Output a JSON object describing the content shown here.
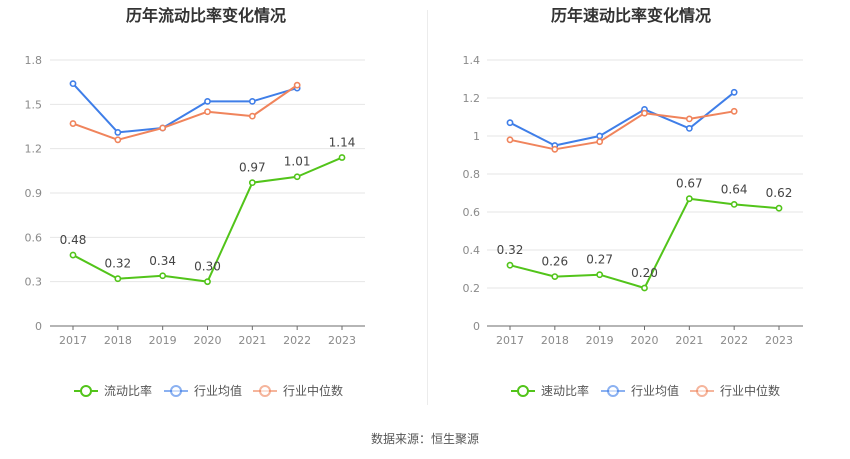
{
  "source_text": "数据来源：恒生聚源",
  "colors": {
    "main": "#52c41a",
    "industry_avg": "#3f7ee8",
    "industry_median": "#f0845c",
    "grid": "#e6e6e6",
    "axis": "#6b6b6b"
  },
  "chart_data": [
    {
      "type": "line",
      "title": "历年流动比率变化情况",
      "categories": [
        "2017",
        "2018",
        "2019",
        "2020",
        "2021",
        "2022",
        "2023"
      ],
      "ylim": [
        0,
        1.8
      ],
      "yticks": [
        "0",
        "0.3",
        "0.6",
        "0.9",
        "1.2",
        "1.5",
        "1.8"
      ],
      "grid": true,
      "legend_position": "bottom",
      "series": [
        {
          "name": "流动比率",
          "values": [
            0.48,
            0.32,
            0.34,
            0.3,
            0.97,
            1.01,
            1.14
          ],
          "labels": [
            "0.48",
            "0.32",
            "0.34",
            "0.30",
            "0.97",
            "1.01",
            "1.14"
          ]
        },
        {
          "name": "行业均值",
          "values": [
            1.64,
            1.31,
            1.34,
            1.52,
            1.52,
            1.61,
            null
          ]
        },
        {
          "name": "行业中位数",
          "values": [
            1.37,
            1.26,
            1.34,
            1.45,
            1.42,
            1.63,
            null
          ]
        }
      ]
    },
    {
      "type": "line",
      "title": "历年速动比率变化情况",
      "categories": [
        "2017",
        "2018",
        "2019",
        "2020",
        "2021",
        "2022",
        "2023"
      ],
      "ylim": [
        0,
        1.4
      ],
      "yticks": [
        "0",
        "0.2",
        "0.4",
        "0.6",
        "0.8",
        "1",
        "1.2",
        "1.4"
      ],
      "grid": true,
      "legend_position": "bottom",
      "series": [
        {
          "name": "速动比率",
          "values": [
            0.32,
            0.26,
            0.27,
            0.2,
            0.67,
            0.64,
            0.62
          ],
          "labels": [
            "0.32",
            "0.26",
            "0.27",
            "0.20",
            "0.67",
            "0.64",
            "0.62"
          ]
        },
        {
          "name": "行业均值",
          "values": [
            1.07,
            0.95,
            1.0,
            1.14,
            1.04,
            1.23,
            null
          ]
        },
        {
          "name": "行业中位数",
          "values": [
            0.98,
            0.93,
            0.97,
            1.12,
            1.09,
            1.13,
            null
          ]
        }
      ]
    }
  ]
}
